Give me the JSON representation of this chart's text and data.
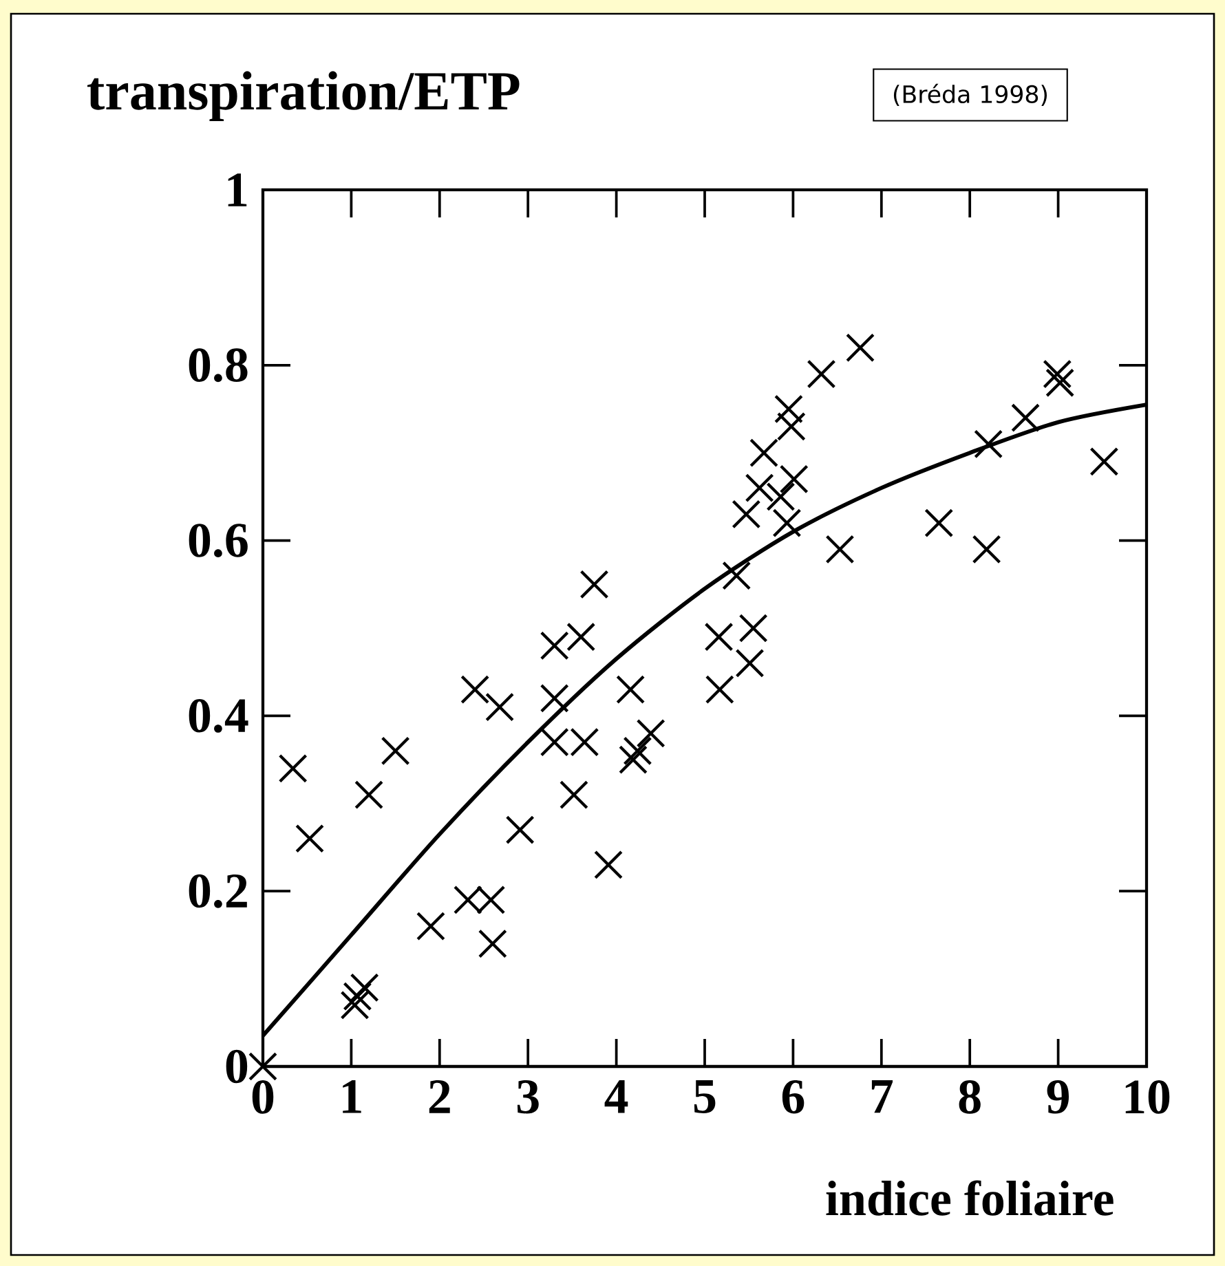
{
  "chart_data": {
    "type": "scatter",
    "ylabel": "transpiration/ETP",
    "xlabel": "indice foliaire",
    "annotations": [
      "(Bréda 1998)"
    ],
    "xlim": [
      0,
      10
    ],
    "ylim": [
      0,
      1
    ],
    "xticks": [
      0,
      1,
      2,
      3,
      4,
      5,
      6,
      7,
      8,
      9,
      10
    ],
    "yticks": [
      0,
      0.2,
      0.4,
      0.6,
      0.8,
      1
    ],
    "marker": "cross",
    "grid": false,
    "series": [
      {
        "color": "#000000",
        "x": [
          0,
          0.34,
          0.53,
          1.2,
          1.5,
          1.07,
          1.04,
          1.15,
          1.9,
          2.32,
          2.58,
          2.6,
          2.4,
          2.68,
          2.91,
          3.3,
          3.3,
          3.3,
          3.64,
          3.52,
          3.91,
          4.16,
          4.39,
          4.24,
          4.19,
          3.75,
          3.6,
          6.76,
          6.32,
          5.95,
          5.98,
          5.67,
          6.01,
          5.62,
          5.47,
          5.93,
          5.86,
          6.53,
          7.65,
          8.19,
          8.21,
          8.63,
          8.99,
          9.02,
          9.52,
          5.36,
          5.16,
          5.55,
          5.51,
          5.17
        ],
        "values": [
          0,
          0.34,
          0.26,
          0.31,
          0.36,
          0.08,
          0.07,
          0.09,
          0.16,
          0.19,
          0.19,
          0.14,
          0.43,
          0.41,
          0.27,
          0.37,
          0.42,
          0.48,
          0.37,
          0.31,
          0.23,
          0.43,
          0.38,
          0.36,
          0.35,
          0.55,
          0.49,
          0.82,
          0.79,
          0.75,
          0.73,
          0.7,
          0.67,
          0.66,
          0.63,
          0.62,
          0.65,
          0.59,
          0.62,
          0.59,
          0.71,
          0.74,
          0.79,
          0.78,
          0.69,
          0.56,
          0.49,
          0.5,
          0.46,
          0.43
        ]
      },
      {
        "type": "line",
        "color": "#000000",
        "marker": "none",
        "x": [
          0,
          1,
          2,
          3,
          4,
          5,
          6,
          7,
          8,
          9,
          10
        ],
        "values": [
          0.035,
          0.15,
          0.265,
          0.37,
          0.465,
          0.545,
          0.61,
          0.66,
          0.7,
          0.735,
          0.755
        ]
      }
    ]
  }
}
